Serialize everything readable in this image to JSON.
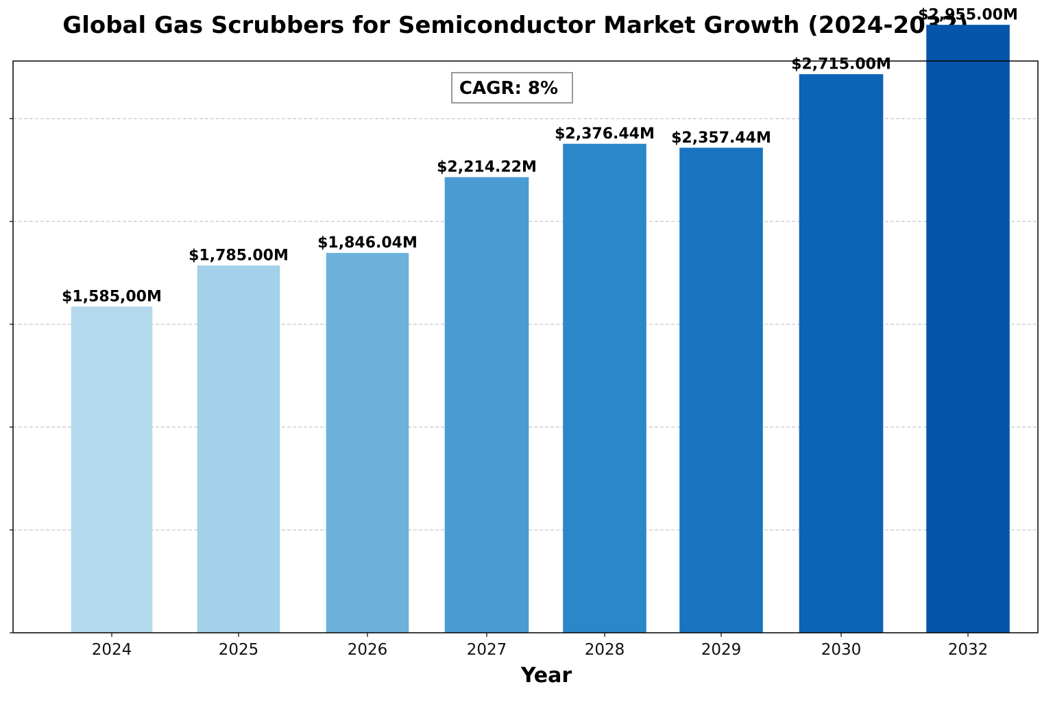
{
  "chart_data": {
    "type": "bar",
    "title": "Global Gas Scrubbers for Semiconductor Market Growth (2024-2032)",
    "xlabel": "Year",
    "ylabel": "",
    "categories": [
      "2024",
      "2025",
      "2026",
      "2027",
      "2028",
      "2029",
      "2030",
      "2032"
    ],
    "values": [
      1585.0,
      1785.0,
      1846.04,
      2214.22,
      2376.44,
      2357.44,
      2715.0,
      2955.0
    ],
    "value_labels": [
      "$1,585,00M",
      "$1,785.00M",
      "$1,846.04M",
      "$2,214.22M",
      "$2,376.44M",
      "$2,357.44M",
      "$2,715.00M",
      "$2,955.00M"
    ],
    "annotation": "CAGR: 8%",
    "grid": true,
    "bar_colors": [
      "#b5d9ec",
      "#a3d1ea",
      "#6cb2db",
      "#4a9bd2",
      "#2c87c9",
      "#1a74c0",
      "#0b64b6",
      "#0556aa"
    ]
  }
}
